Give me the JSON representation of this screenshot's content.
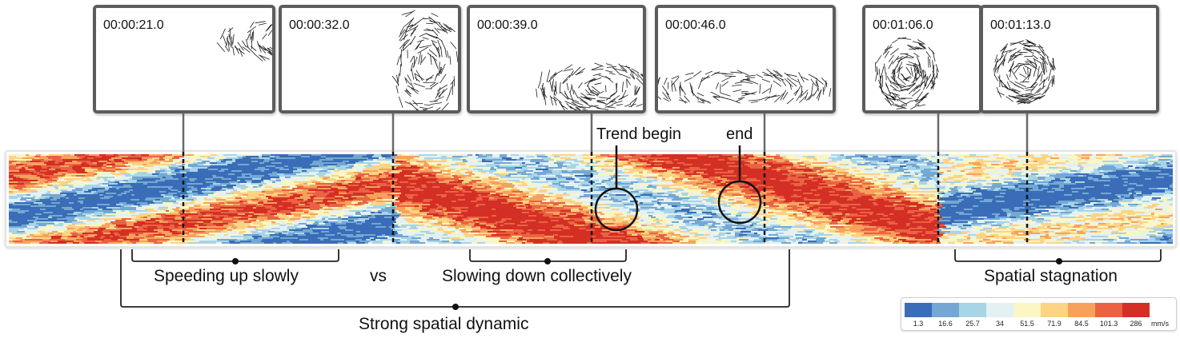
{
  "frames": [
    {
      "time": "00:00:21.0"
    },
    {
      "time": "00:00:32.0"
    },
    {
      "time": "00:00:39.0"
    },
    {
      "time": "00:00:46.0"
    },
    {
      "time": "00:01:06.0"
    },
    {
      "time": "00:01:13.0"
    }
  ],
  "callouts": {
    "trend_begin": "Trend begin",
    "end": "end"
  },
  "labels": {
    "speeding_up": "Speeding up slowly",
    "vs": "vs",
    "slowing_down": "Slowing down collectively",
    "spatial_stagnation": "Spatial stagnation",
    "strong_dynamic": "Strong spatial dynamic"
  },
  "legend": {
    "unit": "mm/s",
    "ticks": [
      "1.3",
      "16.6",
      "25.7",
      "34",
      "51.5",
      "71.9",
      "84.5",
      "101.3",
      "286"
    ],
    "colors": [
      "#3a6db7",
      "#74a8d3",
      "#a8d5e6",
      "#e3f1f5",
      "#fbf6c3",
      "#fdd384",
      "#f6a25c",
      "#ea6243",
      "#d42f25"
    ]
  }
}
